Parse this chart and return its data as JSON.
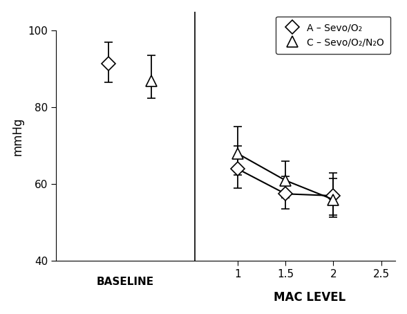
{
  "ylabel": "mmHg",
  "xlabel": "MAC LEVEL",
  "baseline_label": "BASELINE",
  "ylim": [
    40,
    105
  ],
  "yticks": [
    40,
    60,
    80,
    100
  ],
  "xlim": [
    -0.9,
    2.65
  ],
  "divider_x": 0.55,
  "baseline_x_A": -0.35,
  "baseline_x_C": 0.1,
  "series_A": {
    "label": "A – Sevo/O₂",
    "baseline_y": 91.5,
    "baseline_yerr_lo": 5.0,
    "baseline_yerr_hi": 5.5,
    "x": [
      1.0,
      1.5,
      2.0
    ],
    "y": [
      64.0,
      57.5,
      57.0
    ],
    "yerr_lo": [
      5.0,
      4.0,
      5.0
    ],
    "yerr_hi": [
      6.0,
      4.5,
      6.0
    ]
  },
  "series_C": {
    "label": "C – Sevo/O₂/N₂O",
    "baseline_y": 87.0,
    "baseline_yerr_lo": 4.5,
    "baseline_yerr_hi": 6.5,
    "x": [
      1.0,
      1.5,
      2.0
    ],
    "y": [
      68.0,
      61.0,
      56.0
    ],
    "yerr_lo": [
      5.5,
      4.5,
      4.5
    ],
    "yerr_hi": [
      7.0,
      5.0,
      5.5
    ]
  },
  "background_color": "#ffffff",
  "line_color": "#000000",
  "marker_size_diamond": 10,
  "marker_size_triangle": 11,
  "line_width": 1.5,
  "capsize": 4,
  "elinewidth": 1.3,
  "xticks_mac": [
    1.0,
    1.5,
    2.0,
    2.5
  ],
  "xtick_labels_mac": [
    "1",
    "1.5",
    "2",
    "2.5"
  ]
}
